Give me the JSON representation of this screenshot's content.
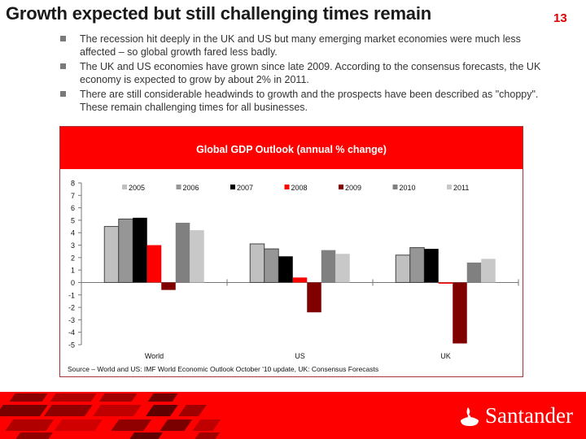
{
  "slide": {
    "title": "Growth expected but still challenging times remain",
    "page_number": "13",
    "bullets": [
      "The recession hit deeply in the UK and US but many emerging market economies were much less affected – so global growth fared less badly.",
      "The UK  and US economies have grown since late 2009.  According to the consensus forecasts, the UK economy is expected to grow by about 2% in 2011.",
      "There are still considerable headwinds to growth and the prospects have been described as \"choppy\".  These remain challenging times for all businesses."
    ],
    "source_note": "Source – World and US: IMF World Economic Outlook October '10 update, UK: Consensus Forecasts",
    "brand": {
      "name": "Santander",
      "logo_icon": "flame-icon",
      "color": "#ff0000"
    }
  },
  "chart_data": {
    "type": "bar",
    "title": "Global GDP Outlook (annual % change)",
    "xlabel": "",
    "ylabel": "",
    "categories": [
      "World",
      "US",
      "UK"
    ],
    "ylim": [
      -5,
      8
    ],
    "yticks": [
      8,
      7,
      6,
      5,
      4,
      3,
      2,
      1,
      0,
      -1,
      -2,
      -3,
      -4,
      -5
    ],
    "legend_position": "top",
    "grid": false,
    "series": [
      {
        "name": "2005",
        "color": "#c0c0c0",
        "values": [
          4.5,
          3.1,
          2.2
        ]
      },
      {
        "name": "2006",
        "color": "#969696",
        "values": [
          5.1,
          2.7,
          2.8
        ]
      },
      {
        "name": "2007",
        "color": "#000000",
        "values": [
          5.2,
          2.1,
          2.7
        ]
      },
      {
        "name": "2008",
        "color": "#ff0000",
        "values": [
          3.0,
          0.4,
          -0.1
        ]
      },
      {
        "name": "2009",
        "color": "#800000",
        "values": [
          -0.6,
          -2.4,
          -4.9
        ]
      },
      {
        "name": "2010",
        "color": "#808080",
        "values": [
          4.8,
          2.6,
          1.6
        ]
      },
      {
        "name": "2011",
        "color": "#c8c8c8",
        "values": [
          4.2,
          2.3,
          1.9
        ]
      }
    ]
  }
}
